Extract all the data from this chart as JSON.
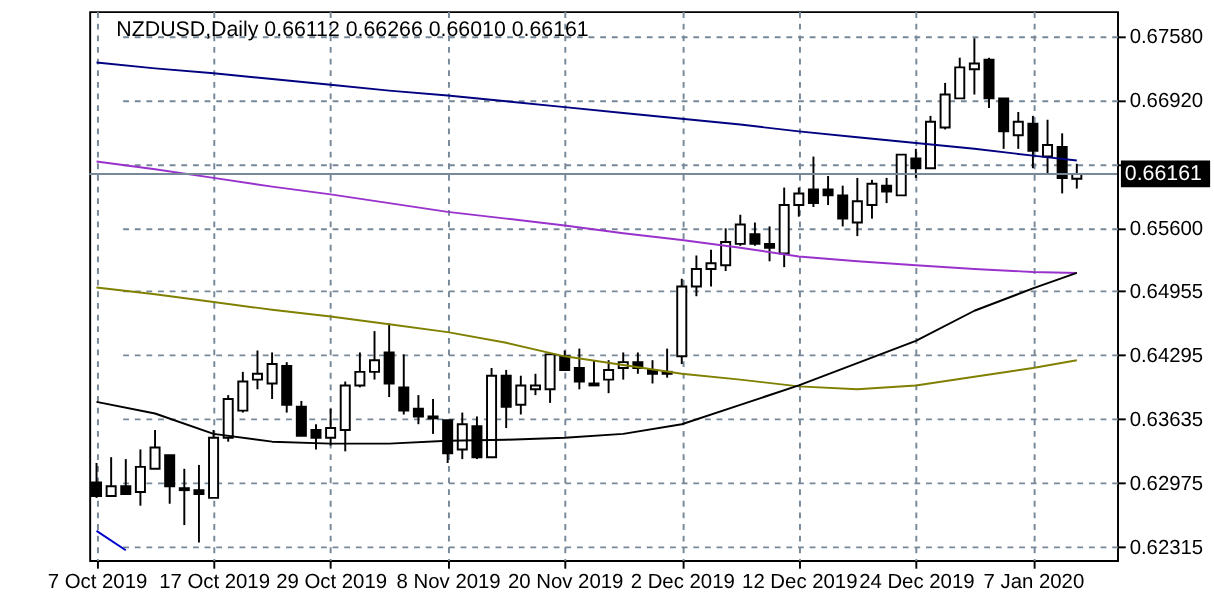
{
  "chart_data": {
    "type": "candlestick",
    "title": "NZDUSD,Daily  0.66112 0.66266 0.66010 0.66161",
    "categories": [
      "7 Oct 2019",
      null,
      null,
      null,
      null,
      null,
      null,
      null,
      "17 Oct 2019",
      null,
      null,
      null,
      null,
      null,
      null,
      null,
      "29 Oct 2019",
      null,
      null,
      null,
      null,
      null,
      null,
      null,
      "8 Nov 2019",
      null,
      null,
      null,
      null,
      null,
      null,
      null,
      "20 Nov 2019",
      null,
      null,
      null,
      null,
      null,
      null,
      null,
      "2 Dec 2019",
      null,
      null,
      null,
      null,
      null,
      null,
      null,
      "12 Dec 2019",
      null,
      null,
      null,
      null,
      null,
      null,
      null,
      "24 Dec 2019",
      null,
      null,
      null,
      null,
      null,
      null,
      null,
      "7 Jan 2020",
      null,
      null,
      null
    ],
    "ohlc": [
      [
        0.6298,
        0.6318,
        0.6282,
        0.6284
      ],
      [
        0.6284,
        0.6324,
        0.6284,
        0.6294
      ],
      [
        0.6294,
        0.6322,
        0.6286,
        0.6286
      ],
      [
        0.6288,
        0.6332,
        0.6274,
        0.6314
      ],
      [
        0.6312,
        0.6352,
        0.6312,
        0.6334
      ],
      [
        0.6326,
        0.6326,
        0.6276,
        0.6294
      ],
      [
        0.6292,
        0.6312,
        0.6254,
        0.629
      ],
      [
        0.629,
        0.6316,
        0.6236,
        0.6286
      ],
      [
        0.6282,
        0.6352,
        0.6282,
        0.6344
      ],
      [
        0.6344,
        0.6388,
        0.634,
        0.6384
      ],
      [
        0.6372,
        0.6412,
        0.637,
        0.6402
      ],
      [
        0.6404,
        0.6434,
        0.6394,
        0.641
      ],
      [
        0.64,
        0.6432,
        0.6384,
        0.642
      ],
      [
        0.6418,
        0.6422,
        0.637,
        0.6378
      ],
      [
        0.6376,
        0.6382,
        0.6346,
        0.6346
      ],
      [
        0.6352,
        0.6358,
        0.6332,
        0.6344
      ],
      [
        0.6344,
        0.6374,
        0.6336,
        0.6354
      ],
      [
        0.6352,
        0.6402,
        0.633,
        0.6398
      ],
      [
        0.6398,
        0.6432,
        0.6396,
        0.6412
      ],
      [
        0.6412,
        0.6454,
        0.6404,
        0.6424
      ],
      [
        0.6432,
        0.6462,
        0.6386,
        0.64
      ],
      [
        0.6396,
        0.643,
        0.6368,
        0.6372
      ],
      [
        0.6374,
        0.6388,
        0.6358,
        0.6366
      ],
      [
        0.6366,
        0.6384,
        0.6348,
        0.6364
      ],
      [
        0.6362,
        0.6362,
        0.6318,
        0.6328
      ],
      [
        0.6332,
        0.637,
        0.6322,
        0.6358
      ],
      [
        0.6356,
        0.6366,
        0.6322,
        0.6324
      ],
      [
        0.6324,
        0.6416,
        0.6324,
        0.6408
      ],
      [
        0.6408,
        0.6414,
        0.6354,
        0.6376
      ],
      [
        0.6378,
        0.6408,
        0.6368,
        0.6398
      ],
      [
        0.6394,
        0.641,
        0.6388,
        0.6398
      ],
      [
        0.6394,
        0.643,
        0.638,
        0.643
      ],
      [
        0.6428,
        0.6434,
        0.6414,
        0.6414
      ],
      [
        0.6416,
        0.6436,
        0.6394,
        0.6402
      ],
      [
        0.64,
        0.6424,
        0.6398,
        0.6398
      ],
      [
        0.6404,
        0.6424,
        0.639,
        0.6414
      ],
      [
        0.6416,
        0.6432,
        0.6404,
        0.6422
      ],
      [
        0.6422,
        0.6432,
        0.641,
        0.6416
      ],
      [
        0.6414,
        0.6424,
        0.64,
        0.641
      ],
      [
        0.641,
        0.6436,
        0.6406,
        0.6412
      ],
      [
        0.6428,
        0.6508,
        0.642,
        0.65
      ],
      [
        0.65,
        0.6532,
        0.649,
        0.6518
      ],
      [
        0.6518,
        0.6538,
        0.65,
        0.6524
      ],
      [
        0.6522,
        0.656,
        0.6516,
        0.6546
      ],
      [
        0.6544,
        0.6574,
        0.6542,
        0.6564
      ],
      [
        0.6554,
        0.6566,
        0.6542,
        0.6544
      ],
      [
        0.6544,
        0.6562,
        0.6526,
        0.654
      ],
      [
        0.6534,
        0.6602,
        0.652,
        0.6584
      ],
      [
        0.6584,
        0.6602,
        0.6572,
        0.6596
      ],
      [
        0.66,
        0.6634,
        0.6582,
        0.6586
      ],
      [
        0.66,
        0.6614,
        0.6584,
        0.6594
      ],
      [
        0.6594,
        0.6604,
        0.6562,
        0.657
      ],
      [
        0.6566,
        0.6612,
        0.6552,
        0.6588
      ],
      [
        0.6584,
        0.661,
        0.657,
        0.6606
      ],
      [
        0.6604,
        0.6612,
        0.6586,
        0.6598
      ],
      [
        0.6594,
        0.6636,
        0.6594,
        0.6636
      ],
      [
        0.6632,
        0.6642,
        0.6612,
        0.6622
      ],
      [
        0.6622,
        0.6676,
        0.6622,
        0.667
      ],
      [
        0.6664,
        0.671,
        0.6662,
        0.6698
      ],
      [
        0.6694,
        0.6736,
        0.6694,
        0.6726
      ],
      [
        0.6724,
        0.6756,
        0.6698,
        0.673
      ],
      [
        0.6734,
        0.6736,
        0.6684,
        0.6694
      ],
      [
        0.6694,
        0.6694,
        0.6642,
        0.666
      ],
      [
        0.6656,
        0.668,
        0.6642,
        0.667
      ],
      [
        0.6668,
        0.6676,
        0.6622,
        0.664
      ],
      [
        0.6634,
        0.6672,
        0.6616,
        0.6646
      ],
      [
        0.6644,
        0.6658,
        0.6596,
        0.6612
      ],
      [
        0.66112,
        0.66266,
        0.6601,
        0.66161
      ]
    ],
    "series": [
      {
        "type": "line",
        "color": "#000080",
        "values": [
          0.6731,
          null,
          null,
          null,
          0.6725,
          null,
          null,
          null,
          0.672,
          null,
          null,
          null,
          0.6714,
          null,
          null,
          null,
          0.6708,
          null,
          null,
          null,
          0.6702,
          null,
          null,
          null,
          0.6697,
          null,
          null,
          null,
          0.6691,
          null,
          null,
          null,
          0.6685,
          null,
          null,
          null,
          0.6679,
          null,
          null,
          null,
          0.6673,
          null,
          null,
          null,
          0.6667,
          null,
          null,
          null,
          0.666,
          null,
          null,
          null,
          0.6654,
          null,
          null,
          null,
          0.6648,
          null,
          null,
          null,
          0.6642,
          null,
          null,
          null,
          0.6635,
          null,
          null,
          0.663
        ]
      },
      {
        "type": "line",
        "color": "#9932cc",
        "values": [
          0.6629,
          null,
          null,
          null,
          0.6621,
          null,
          null,
          null,
          0.6612,
          null,
          null,
          null,
          0.6603,
          null,
          null,
          null,
          0.6595,
          null,
          null,
          null,
          0.6586,
          null,
          null,
          null,
          0.6577,
          null,
          null,
          null,
          0.657,
          null,
          null,
          null,
          0.6563,
          null,
          null,
          null,
          0.6555,
          null,
          null,
          null,
          0.6548,
          null,
          null,
          null,
          0.654,
          null,
          null,
          null,
          0.6531,
          null,
          null,
          null,
          0.6526,
          null,
          null,
          null,
          0.6522,
          null,
          null,
          null,
          0.6518,
          null,
          null,
          null,
          0.6515,
          null,
          null,
          0.6514
        ]
      },
      {
        "type": "line",
        "color": "#808000",
        "values": [
          0.6499,
          null,
          null,
          null,
          0.6492,
          null,
          null,
          null,
          0.6484,
          null,
          null,
          null,
          0.6476,
          null,
          null,
          null,
          0.6469,
          null,
          null,
          null,
          0.6461,
          null,
          null,
          null,
          0.6453,
          null,
          null,
          null,
          0.6442,
          null,
          null,
          null,
          0.6428,
          null,
          null,
          null,
          0.6419,
          null,
          null,
          null,
          0.641,
          null,
          null,
          null,
          0.6404,
          null,
          null,
          null,
          0.6397,
          null,
          null,
          null,
          0.6394,
          null,
          null,
          null,
          0.6398,
          null,
          null,
          null,
          0.6407,
          null,
          null,
          null,
          0.6416,
          null,
          null,
          0.6424
        ]
      },
      {
        "type": "line",
        "color": "#000000",
        "values": [
          0.6381,
          null,
          null,
          null,
          0.6369,
          null,
          null,
          null,
          0.6348,
          null,
          null,
          null,
          0.634,
          null,
          null,
          null,
          0.6338,
          null,
          null,
          null,
          0.6338,
          null,
          null,
          null,
          0.6341,
          null,
          null,
          null,
          0.6342,
          null,
          null,
          null,
          0.6344,
          null,
          null,
          null,
          0.6348,
          null,
          null,
          null,
          0.6358,
          null,
          null,
          null,
          0.6378,
          null,
          null,
          null,
          0.6398,
          null,
          null,
          null,
          0.6421,
          null,
          null,
          null,
          0.6444,
          null,
          null,
          null,
          0.6475,
          null,
          null,
          null,
          0.6498,
          null,
          null,
          0.6514
        ]
      },
      {
        "type": "line",
        "color": "#0000cd",
        "values": [
          0.6248,
          null,
          0.6228,
          null,
          null,
          null,
          null,
          null,
          null,
          null,
          null,
          null,
          null,
          null,
          null,
          null,
          null,
          null,
          null,
          null,
          null,
          null,
          null,
          null,
          null,
          null,
          null,
          null,
          null,
          null,
          null,
          null,
          null,
          null,
          null,
          null,
          null,
          null,
          null,
          null,
          null,
          null,
          null,
          null,
          null,
          null,
          null,
          null,
          null,
          null,
          null,
          null,
          null,
          null,
          null,
          null,
          null,
          null,
          null,
          null,
          null,
          null,
          null,
          null,
          null,
          null,
          null,
          null
        ]
      }
    ],
    "ref_lines": [
      {
        "axis": "y",
        "value": 0.66161,
        "label": "0.66161",
        "color": "#778899"
      }
    ],
    "ylim": [
      0.6218,
      0.6784
    ],
    "yticks": [
      {
        "value": 0.6758,
        "label": "0.67580"
      },
      {
        "value": 0.6692,
        "label": "0.66920"
      },
      {
        "value": 0.6626,
        "label": null
      },
      {
        "value": 0.656,
        "label": "0.65600"
      },
      0.64955,
      0.64295,
      0.63635,
      0.62975,
      0.62315
    ],
    "grid": true
  }
}
